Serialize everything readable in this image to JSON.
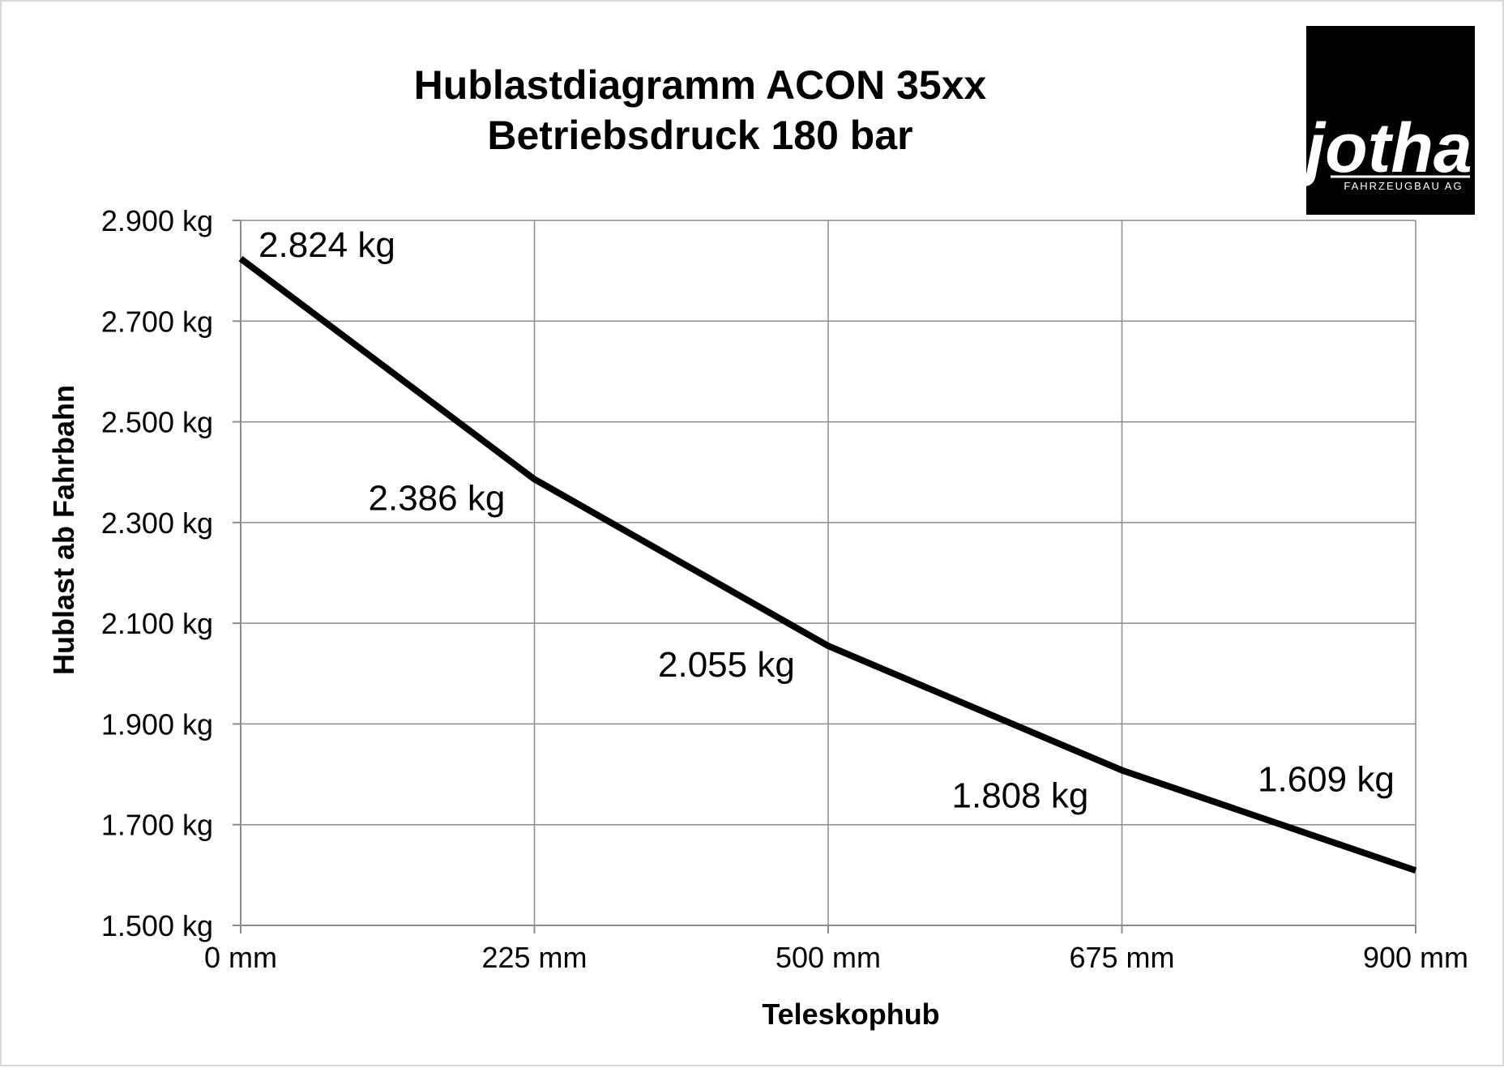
{
  "chart_data": {
    "type": "line",
    "title": "Hublastdiagramm ACON 35xx",
    "subtitle": "Betriebsdruck 180 bar",
    "xlabel": "Teleskophub",
    "ylabel": "Hublast ab Fahrbahn",
    "x_ticks": [
      "0 mm",
      "225 mm",
      "500 mm",
      "675 mm",
      "900 mm"
    ],
    "y_ticks": [
      "2.900 kg",
      "2.700 kg",
      "2.500 kg",
      "2.300 kg",
      "2.100 kg",
      "1.900 kg",
      "1.700 kg",
      "1.500 kg"
    ],
    "y_tick_values": [
      2900,
      2700,
      2500,
      2300,
      2100,
      1900,
      1700,
      1500
    ],
    "ylim": [
      1500,
      2900
    ],
    "grid": true,
    "categories": [
      "0 mm",
      "225 mm",
      "500 mm",
      "675 mm",
      "900 mm"
    ],
    "series": [
      {
        "values": [
          2824,
          2386,
          2055,
          1808,
          1609
        ]
      }
    ],
    "data_labels": [
      "2.824 kg",
      "2.386 kg",
      "2.055 kg",
      "1.808 kg",
      "1.609 kg"
    ],
    "line_color": "#000000"
  },
  "logo": {
    "text": "jotha",
    "subtext": "FAHRZEUGBAU AG",
    "background": "#000000"
  }
}
